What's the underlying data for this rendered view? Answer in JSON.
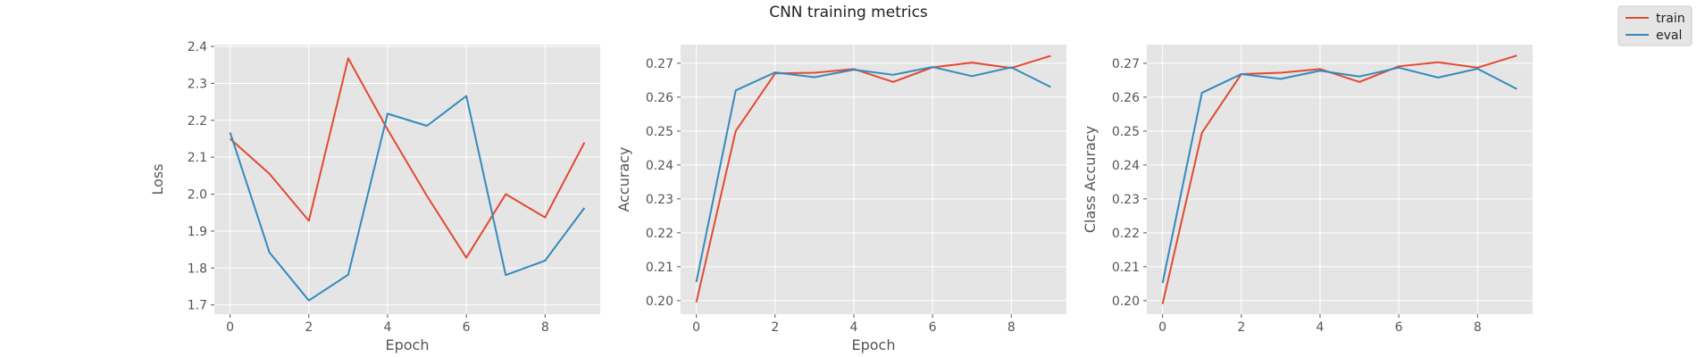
{
  "figure": {
    "title": "CNN training metrics",
    "legend": {
      "placement": "top-right",
      "entries": [
        {
          "label": "train",
          "color": "#E24A33"
        },
        {
          "label": "eval",
          "color": "#348ABD"
        }
      ]
    }
  },
  "colors": {
    "plot_background": "#E5E5E5",
    "grid": "#FFFFFF",
    "text": "#555555"
  },
  "chart_data": [
    {
      "type": "line",
      "xlabel": "Epoch",
      "ylabel": "Loss",
      "grid": true,
      "xlim": [
        -0.4,
        9.4
      ],
      "ylim": [
        1.675,
        2.405
      ],
      "xticks": [
        0,
        2,
        4,
        6,
        8
      ],
      "yticks": [
        1.7,
        1.8,
        1.9,
        2.0,
        2.1,
        2.2,
        2.3,
        2.4
      ],
      "ytick_decimals": 1,
      "x": [
        0,
        1,
        2,
        3,
        4,
        5,
        6,
        7,
        8,
        9
      ],
      "series": [
        {
          "name": "train",
          "color": "#E24A33",
          "values": [
            2.15,
            2.055,
            1.928,
            2.368,
            2.175,
            1.995,
            1.828,
            2.0,
            1.937,
            2.14
          ]
        },
        {
          "name": "eval",
          "color": "#348ABD",
          "values": [
            2.167,
            1.842,
            1.712,
            1.782,
            2.218,
            2.185,
            2.266,
            1.781,
            1.82,
            1.963
          ]
        }
      ]
    },
    {
      "type": "line",
      "xlabel": "Epoch",
      "ylabel": "Accuracy",
      "grid": true,
      "xlim": [
        -0.4,
        9.4
      ],
      "ylim": [
        0.196,
        0.2755
      ],
      "xticks": [
        0,
        2,
        4,
        6,
        8
      ],
      "yticks": [
        0.2,
        0.21,
        0.22,
        0.23,
        0.24,
        0.25,
        0.26,
        0.27
      ],
      "ytick_decimals": 2,
      "x": [
        0,
        1,
        2,
        3,
        4,
        5,
        6,
        7,
        8,
        9
      ],
      "series": [
        {
          "name": "train",
          "color": "#E24A33",
          "values": [
            0.1995,
            0.25,
            0.267,
            0.2672,
            0.2683,
            0.2645,
            0.2688,
            0.2702,
            0.2686,
            0.2722
          ]
        },
        {
          "name": "eval",
          "color": "#348ABD",
          "values": [
            0.2055,
            0.262,
            0.2673,
            0.2659,
            0.2681,
            0.2666,
            0.2689,
            0.2662,
            0.2688,
            0.263
          ]
        }
      ]
    },
    {
      "type": "line",
      "xlabel": "",
      "ylabel": "Class Accuracy",
      "grid": true,
      "xlim": [
        -0.4,
        9.4
      ],
      "ylim": [
        0.196,
        0.2755
      ],
      "xticks": [
        0,
        2,
        4,
        6,
        8
      ],
      "yticks": [
        0.2,
        0.21,
        0.22,
        0.23,
        0.24,
        0.25,
        0.26,
        0.27
      ],
      "ytick_decimals": 2,
      "x": [
        0,
        1,
        2,
        3,
        4,
        5,
        6,
        7,
        8,
        9
      ],
      "series": [
        {
          "name": "train",
          "color": "#E24A33",
          "values": [
            0.199,
            0.2495,
            0.2668,
            0.2672,
            0.2683,
            0.2645,
            0.2691,
            0.2703,
            0.2687,
            0.2723
          ]
        },
        {
          "name": "eval",
          "color": "#348ABD",
          "values": [
            0.2052,
            0.2613,
            0.2668,
            0.2654,
            0.2678,
            0.2661,
            0.2687,
            0.2658,
            0.2684,
            0.2624
          ]
        }
      ]
    }
  ]
}
